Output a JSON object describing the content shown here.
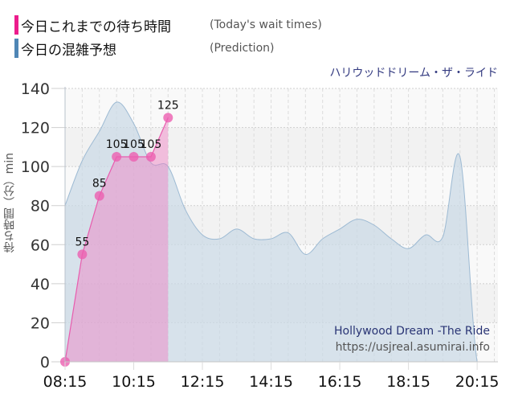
{
  "legend": {
    "today": {
      "jp": "今日これまでの待ち時間",
      "en": "(Today's wait times)",
      "color": "#ec1c8c"
    },
    "prediction": {
      "jp": "今日の混雑予想",
      "en": "(Prediction)",
      "color": "#4f86b5"
    }
  },
  "ride_title": "ハリウッドドリーム・ザ・ライド",
  "brand": {
    "name": "Hollywood Dream -The Ride",
    "url": "https://usjreal.asumirai.info"
  },
  "y_axis_label": "待ち時間（分）min",
  "chart_data": {
    "type": "area",
    "title": "ハリウッドドリーム・ザ・ライド",
    "xlabel": "",
    "ylabel": "待ち時間（分）min",
    "ylim": [
      0,
      140
    ],
    "yticks": [
      0,
      20,
      40,
      60,
      80,
      100,
      120,
      140
    ],
    "xtick_labels": [
      "08:15",
      "10:15",
      "12:15",
      "14:15",
      "16:15",
      "18:15",
      "20:15"
    ],
    "grid": true,
    "legend_position": "top-left",
    "series": [
      {
        "name": "今日これまでの待ち時間 (Today's wait times)",
        "color": "#ec1c8c",
        "x": [
          "08:15",
          "08:45",
          "09:15",
          "09:45",
          "10:15",
          "10:45",
          "11:15"
        ],
        "values": [
          0,
          55,
          85,
          105,
          105,
          105,
          125
        ],
        "labels": [
          "",
          "55",
          "85",
          "105",
          "105",
          "105",
          "125"
        ]
      },
      {
        "name": "今日の混雑予想 (Prediction)",
        "color": "#4f86b5",
        "x": [
          "08:15",
          "08:45",
          "09:15",
          "09:45",
          "10:15",
          "10:45",
          "11:15",
          "11:45",
          "12:15",
          "12:45",
          "13:15",
          "13:45",
          "14:15",
          "14:45",
          "15:15",
          "15:45",
          "16:15",
          "16:45",
          "17:15",
          "17:45",
          "18:15",
          "18:45",
          "19:15",
          "19:45",
          "20:15",
          "20:45"
        ],
        "values": [
          80,
          103,
          118,
          133,
          122,
          102,
          100,
          78,
          65,
          63,
          68,
          63,
          63,
          66,
          55,
          63,
          68,
          73,
          70,
          63,
          58,
          65,
          64,
          105,
          0,
          0
        ]
      }
    ]
  }
}
